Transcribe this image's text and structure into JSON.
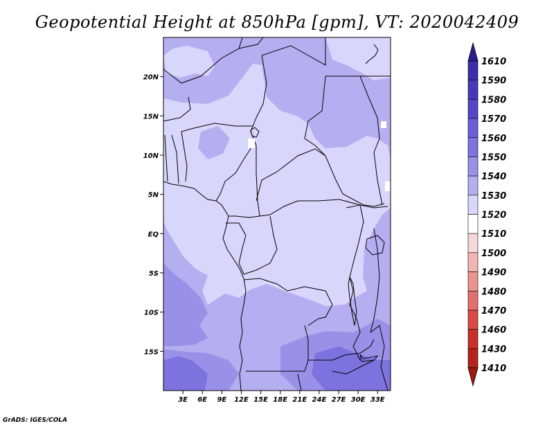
{
  "title": "Geopotential Height at 850hPa [gpm], VT: 2020042409",
  "credit": "GrADS: IGES/COLA",
  "map": {
    "lat_ticks": [
      "20N",
      "15N",
      "10N",
      "5N",
      "EQ",
      "5S",
      "10S",
      "15S"
    ],
    "lon_ticks": [
      "3E",
      "6E",
      "9E",
      "12E",
      "15E",
      "18E",
      "21E",
      "24E",
      "27E",
      "30E",
      "33E"
    ],
    "extent": {
      "lon_min": 0,
      "lon_max": 35,
      "lat_min": -20,
      "lat_max": 25
    }
  },
  "colorbar": {
    "levels": [
      "1610",
      "1590",
      "1580",
      "1570",
      "1560",
      "1550",
      "1540",
      "1530",
      "1520",
      "1510",
      "1500",
      "1490",
      "1480",
      "1470",
      "1460",
      "1430",
      "1410"
    ],
    "colors": [
      "#2b1d8f",
      "#3a2fa8",
      "#4838b8",
      "#5546c6",
      "#6b5fd6",
      "#7e72de",
      "#9b90e8",
      "#b5aef0",
      "#d8d6fa",
      "#ffffff",
      "#f7d8d8",
      "#f2b6b2",
      "#ea9490",
      "#e2706c",
      "#d84a44",
      "#c8302a",
      "#b5231c",
      "#a3180f"
    ]
  },
  "field": {
    "colors": {
      "c1520": "#d8d6fa",
      "c1530": "#b5aef0",
      "c1540": "#9b90e8",
      "c1550": "#7e72de",
      "c1510": "#ffffff"
    }
  }
}
